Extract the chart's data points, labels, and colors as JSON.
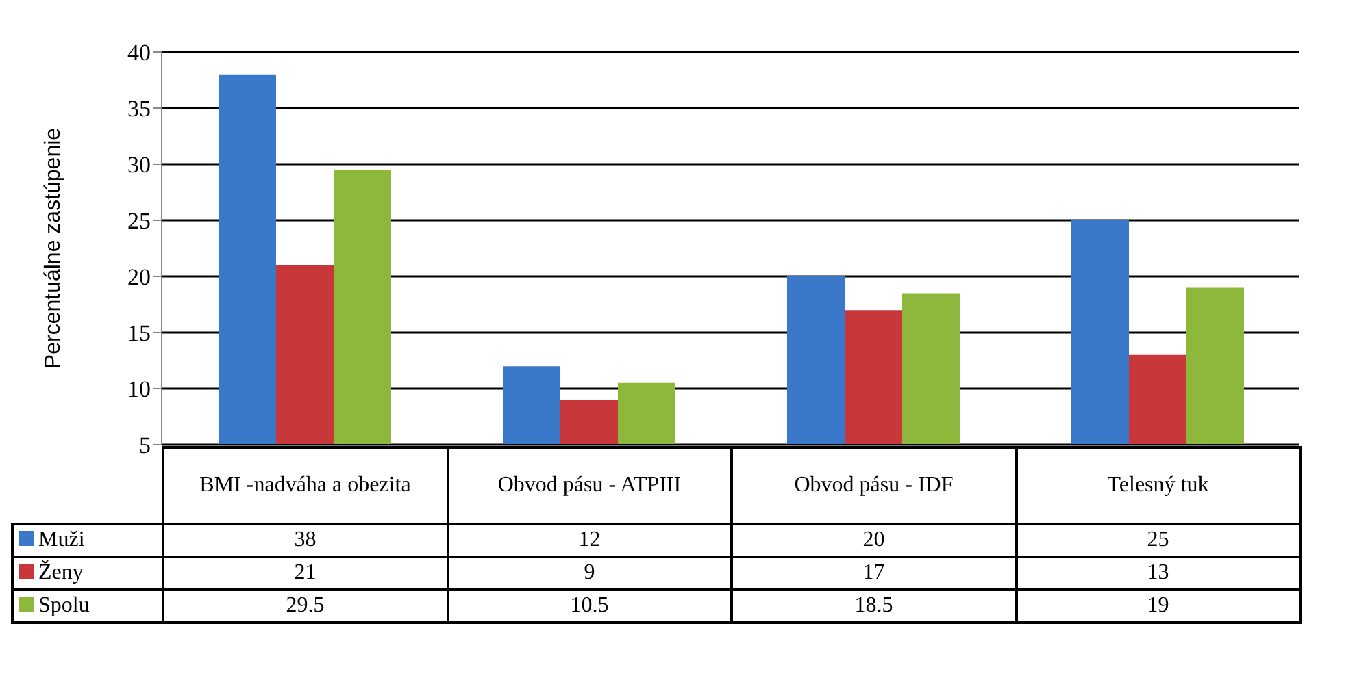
{
  "chart_data": {
    "type": "bar",
    "ylabel": "Percentuálne zastúpenie",
    "categories": [
      "BMI -nadváha a obezita",
      "Obvod pásu - ATPIII",
      "Obvod pásu - IDF",
      "Telesný tuk"
    ],
    "series": [
      {
        "name": "Muži",
        "color": "#3a78c9",
        "values": [
          38,
          12,
          20,
          25
        ]
      },
      {
        "name": "Ženy",
        "color": "#c8383a",
        "values": [
          21,
          9,
          17,
          13
        ]
      },
      {
        "name": "Spolu",
        "color": "#8db83c",
        "values": [
          29.5,
          10.5,
          18.5,
          19
        ]
      }
    ],
    "ylim": [
      5,
      40
    ],
    "yticks": [
      5,
      10,
      15,
      20,
      25,
      30,
      35,
      40
    ],
    "grid": "y",
    "legend": "bottom",
    "data_labels": true
  }
}
